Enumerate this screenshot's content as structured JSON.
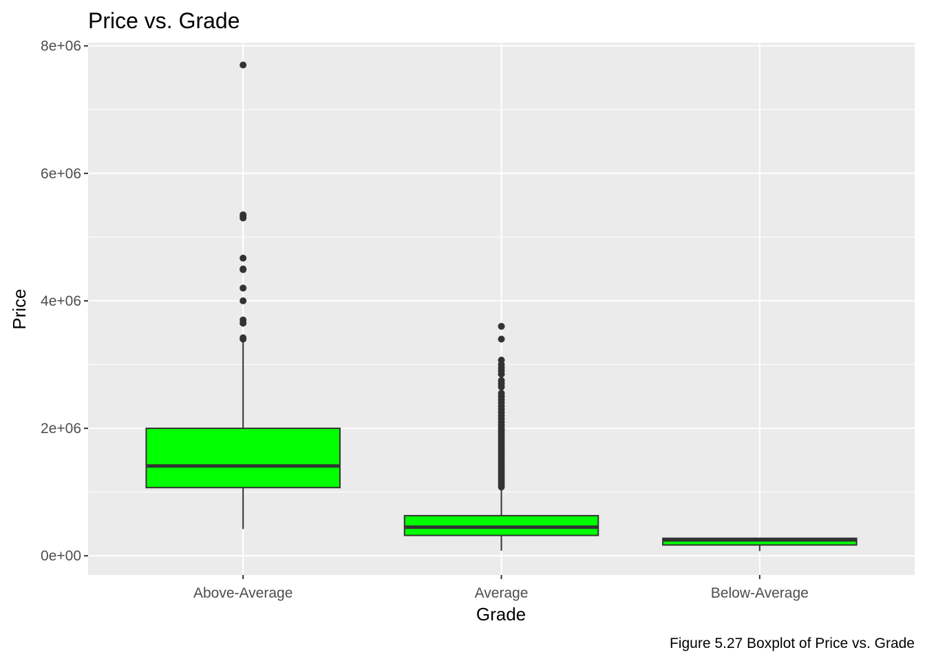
{
  "chart_data": {
    "type": "boxplot",
    "title": "Price vs. Grade",
    "xlabel": "Grade",
    "ylabel": "Price",
    "caption": "Figure 5.27 Boxplot of Price vs. Grade",
    "ylim": [
      -300000,
      8050000
    ],
    "y_ticks": [
      {
        "value": 0,
        "label": "0e+00"
      },
      {
        "value": 2000000,
        "label": "2e+06"
      },
      {
        "value": 4000000,
        "label": "4e+06"
      },
      {
        "value": 6000000,
        "label": "6e+06"
      },
      {
        "value": 8000000,
        "label": "8e+06"
      }
    ],
    "y_minor_ticks": [
      1000000,
      3000000,
      5000000,
      7000000
    ],
    "grid": true,
    "background": "#ebebeb",
    "box_fill": "#00ff00",
    "box_stroke": "#333333",
    "categories": [
      "Above-Average",
      "Average",
      "Below-Average"
    ],
    "boxes": [
      {
        "category": "Above-Average",
        "whisker_low": 420000,
        "q1": 1070000,
        "median": 1410000,
        "q3": 2000000,
        "whisker_high": 3380000,
        "outliers": [
          3400000,
          3420000,
          3650000,
          3700000,
          4000000,
          4200000,
          4490000,
          4500000,
          4670000,
          5300000,
          5330000,
          5350000,
          7700000
        ]
      },
      {
        "category": "Average",
        "whisker_low": 80000,
        "q1": 320000,
        "median": 450000,
        "q3": 630000,
        "whisker_high": 1060000,
        "outliers": [
          1080000,
          1120000,
          1160000,
          1200000,
          1240000,
          1280000,
          1320000,
          1360000,
          1400000,
          1440000,
          1480000,
          1520000,
          1560000,
          1600000,
          1640000,
          1680000,
          1720000,
          1760000,
          1800000,
          1840000,
          1880000,
          1920000,
          1960000,
          2000000,
          2050000,
          2100000,
          2150000,
          2200000,
          2250000,
          2300000,
          2350000,
          2400000,
          2450000,
          2500000,
          2550000,
          2650000,
          2700000,
          2750000,
          2850000,
          2900000,
          2950000,
          3000000,
          3070000,
          3400000,
          3600000
        ]
      },
      {
        "category": "Below-Average",
        "whisker_low": 75000,
        "q1": 170000,
        "median": 250000,
        "q3": 275000,
        "whisker_high": 280000,
        "outliers": []
      }
    ]
  }
}
